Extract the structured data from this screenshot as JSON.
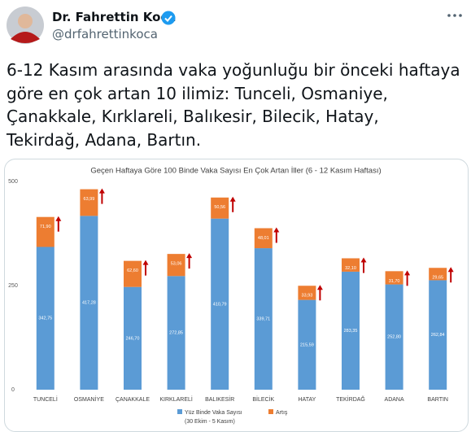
{
  "tweet": {
    "name": "Dr. Fahrettin Koca",
    "handle": "@drfahrettinkoca",
    "text_lines": [
      "6-12 Kasım arasında vaka yoğunluğu bir önceki haftaya",
      "göre en çok artan 10 ilimiz: Tunceli, Osmaniye,",
      "Çanakkale, Kırklareli, Balıkesir, Bilecik, Hatay,",
      "Tekirdağ, Adana, Bartın."
    ]
  },
  "chart_data": {
    "type": "stacked-bar",
    "title": "Geçen Haftaya Göre 100 Binde Vaka Sayısı En Çok Artan İller (6 - 12 Kasım Haftası)",
    "categories": [
      "TUNCELİ",
      "OSMANİYE",
      "ÇANAKKALE",
      "KIRKLARELİ",
      "BALIKESİR",
      "BİLECİK",
      "HATAY",
      "TEKİRDAĞ",
      "ADANA",
      "BARTIN"
    ],
    "series": [
      {
        "name": "Yüz Binde Vaka Sayısı",
        "color": "#5b9bd5",
        "values": [
          342.75,
          417.28,
          246.7,
          272.85,
          410.79,
          339.71,
          215.59,
          283.35,
          252.8,
          262.84
        ],
        "value_labels": [
          "342,75",
          "417,28",
          "246,70",
          "272,85",
          "410,79",
          "339,71",
          "215,59",
          "283,35",
          "252,80",
          "262,84"
        ]
      },
      {
        "name": "Artış",
        "color": "#ed7d31",
        "values": [
          71.9,
          63.99,
          62.6,
          53.06,
          50.56,
          48.01,
          33.93,
          32.1,
          31.7,
          29.65
        ],
        "value_labels": [
          "71,90",
          "63,99",
          "62,60",
          "53,06",
          "50,56",
          "48,01",
          "33,93",
          "32,10",
          "31,70",
          "29,65"
        ]
      }
    ],
    "legend_note": "(30 Ekim - 5 Kasım)",
    "ylim": [
      0,
      500
    ],
    "yticks": [
      0,
      250,
      500
    ],
    "grid": false
  }
}
